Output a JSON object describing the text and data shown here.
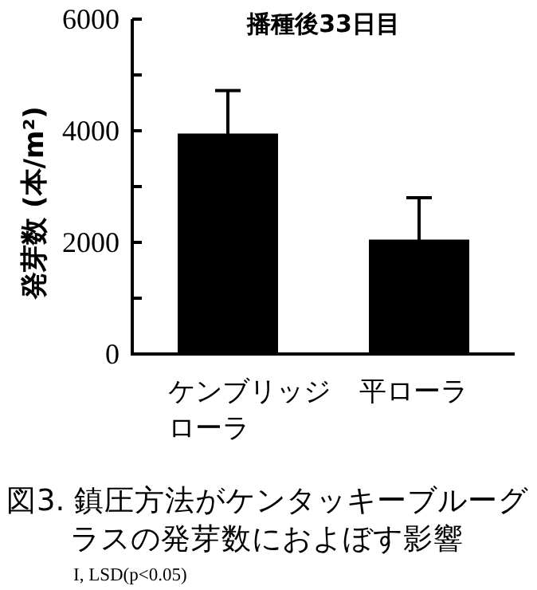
{
  "chart_data": {
    "type": "bar",
    "title": "播種後33日目",
    "categories": [
      "ケンブリッジローラ",
      "平ローラ"
    ],
    "values": [
      3950,
      2050
    ],
    "errors": [
      770,
      750
    ],
    "color": "#000000",
    "ylabel": "発芽数 (本/m²)",
    "ylim": [
      0,
      6000
    ],
    "yticks": [
      0,
      {
        "value": 1000,
        "label": null
      },
      2000,
      {
        "value": 3000,
        "label": null
      },
      4000,
      {
        "value": 5000,
        "label": null
      },
      6000
    ],
    "annotations": [
      "図3. 鎮圧方法がケンタッキーブルーグラスの発芽数におよぼす影響",
      "I, LSD(p<0.05)"
    ]
  }
}
